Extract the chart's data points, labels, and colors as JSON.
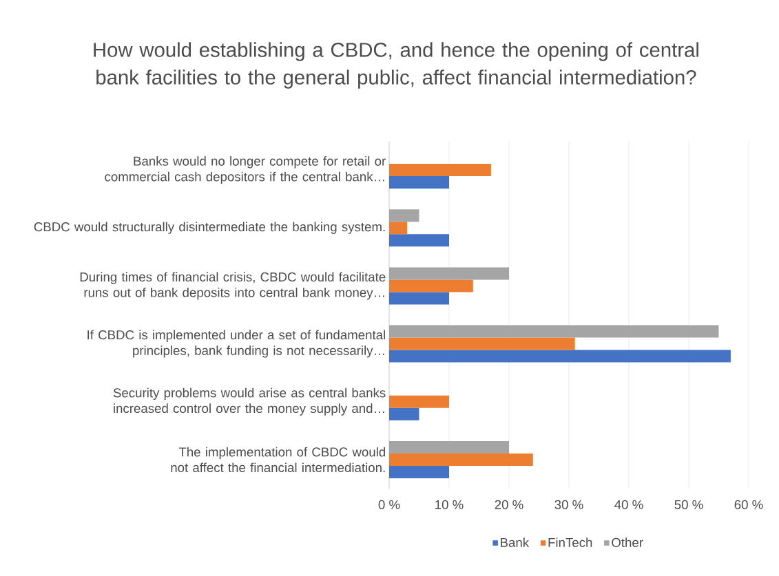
{
  "chart_data": {
    "type": "bar",
    "orientation": "horizontal",
    "title": "How would establishing a CBDC, and hence the opening of central bank facilities to the general public, affect financial intermediation?",
    "categories": [
      "Banks would no longer compete for retail or commercial cash depositors if the central bank…",
      "CBDC would structurally disintermediate the banking system.",
      "During times of financial crisis, CBDC would facilitate runs out of bank deposits into central bank money…",
      "If CBDC is implemented under a set of fundamental principles, bank funding is not necessarily…",
      "Security problems would arise as central banks increased control over the money supply and…",
      "The implementation of CBDC would not affect the financial intermediation."
    ],
    "series": [
      {
        "name": "Bank",
        "color": "#4472c4",
        "values": [
          10,
          10,
          10,
          57,
          5,
          10
        ]
      },
      {
        "name": "FinTech",
        "color": "#ed7d31",
        "values": [
          17,
          3,
          14,
          31,
          10,
          24
        ]
      },
      {
        "name": "Other",
        "color": "#a5a5a5",
        "values": [
          0,
          5,
          20,
          55,
          0,
          20
        ]
      }
    ],
    "xlim": [
      0,
      60
    ],
    "xticks": [
      {
        "value": 0,
        "label": "0 %"
      },
      {
        "value": 10,
        "label": "10 %"
      },
      {
        "value": 20,
        "label": "20 %"
      },
      {
        "value": 30,
        "label": "30 %"
      },
      {
        "value": 40,
        "label": "40 %"
      },
      {
        "value": 50,
        "label": "50 %"
      },
      {
        "value": 60,
        "label": "60 %"
      }
    ],
    "grid": "x",
    "legend": "bottom"
  }
}
